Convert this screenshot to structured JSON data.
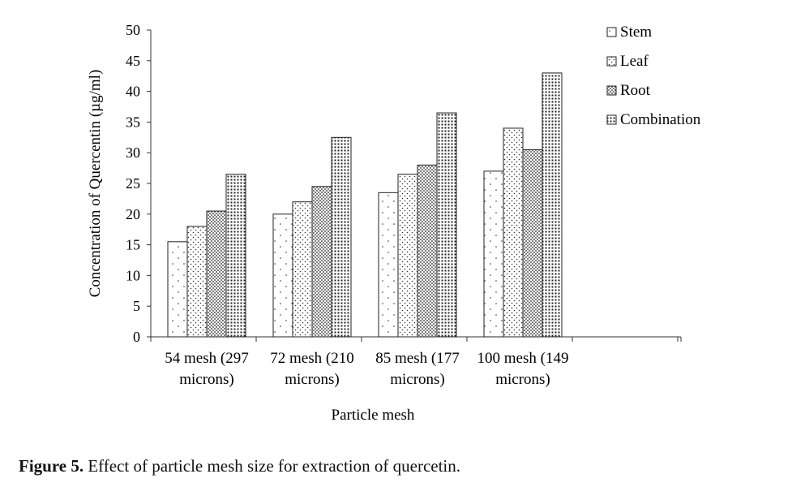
{
  "chart_data": {
    "type": "bar",
    "categories": [
      [
        "54 mesh (297",
        "microns)"
      ],
      [
        "72 mesh (210",
        "microns)"
      ],
      [
        "85 mesh (177",
        "microns)"
      ],
      [
        "100 mesh (149",
        "microns)"
      ]
    ],
    "series": [
      {
        "name": "Stem",
        "values": [
          15.5,
          20,
          23.5,
          27
        ],
        "pattern": "sparse-dots"
      },
      {
        "name": "Leaf",
        "values": [
          18,
          22,
          26.5,
          34
        ],
        "pattern": "light-dots"
      },
      {
        "name": "Root",
        "values": [
          20.5,
          24.5,
          28,
          30.5
        ],
        "pattern": "dense-dots"
      },
      {
        "name": "Combination",
        "values": [
          26.5,
          32.5,
          36.5,
          43
        ],
        "pattern": "grid-dots"
      }
    ],
    "xlabel": "Particle mesh",
    "ylabel": "Concentration of Quercentin (µg/ml)",
    "ylim": [
      0,
      50
    ],
    "yticks": [
      0,
      5,
      10,
      15,
      20,
      25,
      30,
      35,
      40,
      45,
      50
    ],
    "grid": false,
    "legend": "top-right",
    "colors": {
      "bar_fill": "#ffffff",
      "bar_stroke": "#222222",
      "pattern": "#222222"
    }
  },
  "caption": {
    "label": "Figure 5.",
    "text": " Effect of particle mesh size for extraction of quercetin."
  }
}
